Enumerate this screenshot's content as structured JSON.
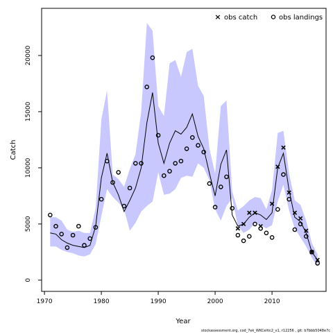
{
  "chart_data": {
    "type": "line",
    "title": "",
    "xlabel": "Year",
    "ylabel": "Catch",
    "xlim": [
      1969.5,
      2019.5
    ],
    "ylim": [
      -1000,
      24200
    ],
    "x_ticks": [
      1970,
      1980,
      1990,
      2000,
      2010
    ],
    "y_ticks": [
      0,
      5000,
      10000,
      15000,
      20000
    ],
    "legend_position": "top-right",
    "legend": {
      "catch": "obs catch",
      "landings": "obs landings"
    },
    "colors": {
      "band": "#c8c8ff",
      "line": "#000000",
      "points": "#000000"
    },
    "years": [
      1971,
      1972,
      1973,
      1974,
      1975,
      1976,
      1977,
      1978,
      1979,
      1980,
      1981,
      1982,
      1983,
      1984,
      1985,
      1986,
      1987,
      1988,
      1989,
      1990,
      1991,
      1992,
      1993,
      1994,
      1995,
      1996,
      1997,
      1998,
      1999,
      2000,
      2001,
      2002,
      2003,
      2004,
      2005,
      2006,
      2007,
      2008,
      2009,
      2010,
      2011,
      2012,
      2013,
      2014,
      2015,
      2016,
      2017,
      2018
    ],
    "band_lower": [
      3000,
      3000,
      2700,
      2500,
      2400,
      2200,
      2100,
      2300,
      3200,
      5700,
      8100,
      7400,
      6900,
      6300,
      4400,
      5100,
      6100,
      6600,
      7000,
      9600,
      7600,
      7700,
      8100,
      9100,
      9300,
      9200,
      10400,
      10000,
      8900,
      6300,
      5300,
      6600,
      7300,
      4800,
      4200,
      4500,
      5100,
      4900,
      4600,
      4900,
      7000,
      8500,
      6200,
      4600,
      3800,
      3000,
      2000,
      1200
    ],
    "band_upper": [
      5600,
      5600,
      5300,
      4500,
      4300,
      4400,
      4200,
      4200,
      6400,
      14300,
      16900,
      9400,
      9000,
      8300,
      9900,
      11200,
      15000,
      22900,
      22200,
      15500,
      14600,
      19300,
      19600,
      18100,
      20300,
      20600,
      17300,
      16400,
      11700,
      9500,
      15500,
      16000,
      7900,
      6200,
      6600,
      7100,
      7400,
      7300,
      6300,
      8000,
      13100,
      13300,
      9500,
      7100,
      6700,
      5300,
      3300,
      2300
    ],
    "fit": [
      4200,
      4100,
      3600,
      3300,
      3100,
      3000,
      2900,
      3100,
      4800,
      9100,
      11300,
      8700,
      7600,
      6100,
      7100,
      8200,
      10000,
      14000,
      16700,
      12200,
      10400,
      12200,
      13300,
      13000,
      13600,
      14800,
      12800,
      11700,
      9500,
      7500,
      10300,
      11600,
      5800,
      4800,
      5000,
      5600,
      6000,
      5800,
      5400,
      6000,
      10000,
      11300,
      8000,
      5600,
      5200,
      4200,
      2500,
      1800
    ],
    "obs_catch": {
      "years": [
        2004,
        2005,
        2006,
        2007,
        2008,
        2010,
        2011,
        2012,
        2013,
        2014,
        2015,
        2016,
        2017,
        2018
      ],
      "values": [
        4600,
        5000,
        6000,
        6000,
        4800,
        6800,
        10100,
        11800,
        7800,
        6000,
        5500,
        4400,
        2500,
        1800
      ]
    },
    "obs_landings": {
      "years": [
        1971,
        1972,
        1973,
        1974,
        1975,
        1976,
        1977,
        1978,
        1979,
        1980,
        1981,
        1982,
        1983,
        1984,
        1985,
        1986,
        1987,
        1988,
        1989,
        1990,
        1991,
        1992,
        1993,
        1994,
        1995,
        1996,
        1997,
        1998,
        1999,
        2000,
        2001,
        2002,
        2003,
        2004,
        2005,
        2006,
        2007,
        2008,
        2009,
        2010,
        2011,
        2012,
        2013,
        2014,
        2015,
        2016,
        2017,
        2018
      ],
      "values": [
        5800,
        4800,
        4100,
        2900,
        4000,
        4800,
        3100,
        3700,
        4700,
        7200,
        10600,
        8700,
        9600,
        6600,
        8200,
        10400,
        10400,
        17200,
        19800,
        12900,
        9300,
        9700,
        10400,
        10600,
        11700,
        12700,
        12000,
        11400,
        8600,
        6500,
        8300,
        9200,
        6400,
        4000,
        3500,
        3900,
        5000,
        4600,
        4200,
        3800,
        6300,
        9400,
        7200,
        4500,
        5000,
        3900,
        2500,
        1500
      ]
    }
  },
  "footer": "stockassessment.org, cod_7ek_WKCeltic2_v1, r12256 , git: b7bbb5048e7c"
}
